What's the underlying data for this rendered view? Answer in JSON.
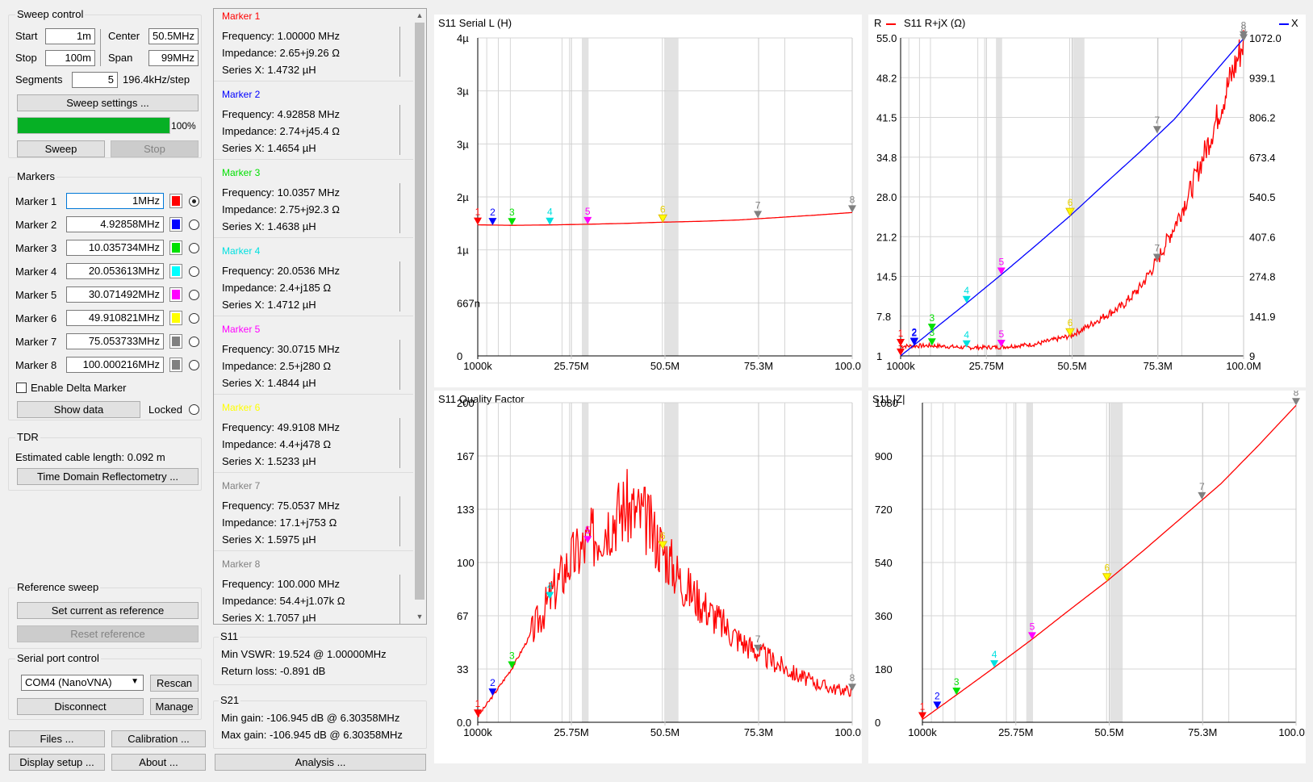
{
  "sweep": {
    "title": "Sweep control",
    "start_label": "Start",
    "start_value": "1m",
    "center_label": "Center",
    "center_value": "50.5MHz",
    "stop_label": "Stop",
    "stop_value": "100m",
    "span_label": "Span",
    "span_value": "99MHz",
    "segments_label": "Segments",
    "segments_value": "5",
    "step_text": "196.4kHz/step",
    "settings_button": "Sweep settings ...",
    "progress": 100,
    "progress_text": "100%",
    "sweep_button": "Sweep",
    "stop_button": "Stop"
  },
  "markers": {
    "title": "Markers",
    "items": [
      {
        "label": "Marker 1",
        "value": "1MHz",
        "color": "#ff0000",
        "selected": true
      },
      {
        "label": "Marker 2",
        "value": "4.92858MHz",
        "color": "#0000ff",
        "selected": false
      },
      {
        "label": "Marker 3",
        "value": "10.035734MHz",
        "color": "#00e000",
        "selected": false
      },
      {
        "label": "Marker 4",
        "value": "20.053613MHz",
        "color": "#00ffff",
        "selected": false
      },
      {
        "label": "Marker 5",
        "value": "30.071492MHz",
        "color": "#ff00ff",
        "selected": false
      },
      {
        "label": "Marker 6",
        "value": "49.910821MHz",
        "color": "#ffff00",
        "selected": false
      },
      {
        "label": "Marker 7",
        "value": "75.053733MHz",
        "color": "#808080",
        "selected": false
      },
      {
        "label": "Marker 8",
        "value": "100.000216MHz",
        "color": "#808080",
        "selected": false
      }
    ],
    "delta_label": "Enable Delta Marker",
    "show_data_button": "Show data",
    "locked_label": "Locked"
  },
  "tdr": {
    "title": "TDR",
    "cable_text": "Estimated cable length: 0.092 m",
    "button": "Time Domain Reflectometry ..."
  },
  "reference": {
    "title": "Reference sweep",
    "set_button": "Set current as reference",
    "reset_button": "Reset reference"
  },
  "serial": {
    "title": "Serial port control",
    "port_value": "COM4 (NanoVNA)",
    "rescan_button": "Rescan",
    "disconnect_button": "Disconnect",
    "manage_button": "Manage"
  },
  "bottom": {
    "files_button": "Files ...",
    "calibration_button": "Calibration ...",
    "display_button": "Display setup ...",
    "about_button": "About ...",
    "analysis_button": "Analysis ..."
  },
  "marker_details": [
    {
      "title": "Marker 1",
      "color": "#ff0000",
      "freq": "Frequency:  1.00000 MHz",
      "imp": "Impedance:  2.65+j9.26 Ω",
      "sx": "Series X:  1.4732 µH"
    },
    {
      "title": "Marker 2",
      "color": "#0000ff",
      "freq": "Frequency:  4.92858 MHz",
      "imp": "Impedance:  2.74+j45.4 Ω",
      "sx": "Series X:  1.4654 µH"
    },
    {
      "title": "Marker 3",
      "color": "#00e000",
      "freq": "Frequency:  10.0357 MHz",
      "imp": "Impedance:  2.75+j92.3 Ω",
      "sx": "Series X:  1.4638 µH"
    },
    {
      "title": "Marker 4",
      "color": "#00e0e0",
      "freq": "Frequency:  20.0536 MHz",
      "imp": "Impedance:  2.4+j185 Ω",
      "sx": "Series X:  1.4712 µH"
    },
    {
      "title": "Marker 5",
      "color": "#ff00ff",
      "freq": "Frequency:  30.0715 MHz",
      "imp": "Impedance:  2.5+j280 Ω",
      "sx": "Series X:  1.4844 µH"
    },
    {
      "title": "Marker 6",
      "color": "#ffff00",
      "freq": "Frequency:  49.9108 MHz",
      "imp": "Impedance:  4.4+j478 Ω",
      "sx": "Series X:  1.5233 µH"
    },
    {
      "title": "Marker 7",
      "color": "#808080",
      "freq": "Frequency:  75.0537 MHz",
      "imp": "Impedance:  17.1+j753 Ω",
      "sx": "Series X:  1.5975 µH"
    },
    {
      "title": "Marker 8",
      "color": "#808080",
      "freq": "Frequency:  100.000 MHz",
      "imp": "Impedance:  54.4+j1.07k Ω",
      "sx": "Series X:  1.7057 µH"
    }
  ],
  "s11_summary": {
    "title": "S11",
    "vswr": "Min VSWR:  19.524 @ 1.00000MHz",
    "return_loss": "Return loss:  -0.891 dB"
  },
  "s21_summary": {
    "title": "S21",
    "min_gain": "Min gain:  -106.945 dB @ 6.30358MHz",
    "max_gain": "Max gain:  -106.945 dB @ 6.30358MHz"
  },
  "chart_data": [
    {
      "type": "line",
      "title": "S11 Serial L (H)",
      "x_ticks": [
        "1000k",
        "25.75M",
        "50.5M",
        "75.3M",
        "100.0M"
      ],
      "y_ticks": [
        "0",
        "667n",
        "1µ",
        "2µ",
        "3µ",
        "3µ",
        "4µ"
      ],
      "series": [
        {
          "color": "#ff0000",
          "x": [
            1,
            10,
            20,
            30,
            40,
            50,
            60,
            70,
            80,
            90,
            100
          ],
          "y": [
            1.4732,
            1.4638,
            1.4712,
            1.4844,
            1.5,
            1.5233,
            1.54,
            1.565,
            1.61,
            1.655,
            1.7057
          ]
        }
      ],
      "markers": [
        {
          "label": "1",
          "x": 1,
          "y": 1.4732,
          "color": "#ff0000"
        },
        {
          "label": "2",
          "x": 4.93,
          "y": 1.4654,
          "color": "#0000ff"
        },
        {
          "label": "3",
          "x": 10.04,
          "y": 1.4638,
          "color": "#00e000"
        },
        {
          "label": "4",
          "x": 20.05,
          "y": 1.4712,
          "color": "#00e0e0"
        },
        {
          "label": "5",
          "x": 30.07,
          "y": 1.4844,
          "color": "#ff00ff"
        },
        {
          "label": "6",
          "x": 49.91,
          "y": 1.5233,
          "color": "#ffff00"
        },
        {
          "label": "7",
          "x": 75.05,
          "y": 1.5975,
          "color": "#808080"
        },
        {
          "label": "8",
          "x": 100,
          "y": 1.7057,
          "color": "#808080"
        }
      ]
    },
    {
      "type": "line",
      "title": "S11 R+jX (Ω)",
      "left_legend": "R",
      "right_legend": "X",
      "x_ticks": [
        "1000k",
        "25.75M",
        "50.5M",
        "75.3M",
        "100.0M"
      ],
      "y_left_ticks": [
        "1",
        "7.8",
        "14.5",
        "21.2",
        "28.0",
        "34.8",
        "41.5",
        "48.2",
        "55.0"
      ],
      "y_right_ticks": [
        "9",
        "141.9",
        "274.8",
        "407.6",
        "540.5",
        "673.4",
        "806.2",
        "939.1",
        "1072.0"
      ],
      "series": [
        {
          "name": "R",
          "color": "#ff0000",
          "x": [
            1,
            5,
            10,
            20,
            30,
            40,
            50,
            55,
            60,
            65,
            70,
            75,
            80,
            85,
            90,
            95,
            100
          ],
          "y": [
            2.65,
            2.7,
            2.75,
            2.4,
            2.5,
            3.0,
            4.4,
            6.0,
            7.8,
            9.5,
            12.5,
            17.1,
            23,
            29.5,
            37.5,
            46,
            54.4
          ]
        },
        {
          "name": "X",
          "color": "#0000ff",
          "x": [
            1,
            10,
            20,
            30,
            40,
            50,
            60,
            70,
            80,
            90,
            100
          ],
          "y": [
            9.26,
            92.3,
            185,
            280,
            378,
            478,
            585,
            690,
            800,
            935,
            1070
          ]
        }
      ],
      "markers_r": [
        {
          "label": "1",
          "x": 1,
          "y": 2.65,
          "color": "#ff0000"
        },
        {
          "label": "2",
          "x": 4.93,
          "y": 2.74,
          "color": "#0000ff"
        },
        {
          "label": "3",
          "x": 10.04,
          "y": 2.75,
          "color": "#00e000"
        },
        {
          "label": "4",
          "x": 20.05,
          "y": 2.4,
          "color": "#00e0e0"
        },
        {
          "label": "5",
          "x": 30.07,
          "y": 2.5,
          "color": "#ff00ff"
        },
        {
          "label": "6",
          "x": 49.91,
          "y": 4.4,
          "color": "#ffff00"
        },
        {
          "label": "7",
          "x": 75.05,
          "y": 17.1,
          "color": "#808080"
        },
        {
          "label": "8",
          "x": 100,
          "y": 54.4,
          "color": "#808080"
        }
      ],
      "markers_x": [
        {
          "label": "1",
          "x": 1,
          "y": 9.26,
          "color": "#ff0000"
        },
        {
          "label": "2",
          "x": 4.93,
          "y": 45.4,
          "color": "#0000ff"
        },
        {
          "label": "3",
          "x": 10.04,
          "y": 92.3,
          "color": "#00e000"
        },
        {
          "label": "4",
          "x": 20.05,
          "y": 185,
          "color": "#00e0e0"
        },
        {
          "label": "5",
          "x": 30.07,
          "y": 280,
          "color": "#ff00ff"
        },
        {
          "label": "6",
          "x": 49.91,
          "y": 478,
          "color": "#ffff00"
        },
        {
          "label": "7",
          "x": 75.05,
          "y": 753,
          "color": "#808080"
        },
        {
          "label": "8",
          "x": 100,
          "y": 1070,
          "color": "#808080"
        }
      ]
    },
    {
      "type": "line",
      "title": "S11 Quality Factor",
      "x_ticks": [
        "1000k",
        "25.75M",
        "50.5M",
        "75.3M",
        "100.0M"
      ],
      "y_ticks": [
        "0.0",
        "33",
        "67",
        "100",
        "133",
        "167",
        "200"
      ],
      "series": [
        {
          "color": "#ff0000",
          "x": [
            1,
            5,
            10,
            15,
            20,
            25,
            30,
            35,
            40,
            45,
            50,
            55,
            60,
            65,
            70,
            75,
            80,
            85,
            90,
            95,
            100
          ],
          "y": [
            3.5,
            16.6,
            33.6,
            55,
            77,
            100,
            112,
            125,
            135,
            128,
            108,
            88,
            75,
            63,
            52,
            44,
            37,
            30,
            25,
            21,
            19.6
          ]
        }
      ],
      "markers": [
        {
          "label": "1",
          "x": 1,
          "y": 3.5,
          "color": "#ff0000"
        },
        {
          "label": "2",
          "x": 4.93,
          "y": 16.6,
          "color": "#0000ff"
        },
        {
          "label": "3",
          "x": 10.04,
          "y": 33.6,
          "color": "#00e000"
        },
        {
          "label": "4",
          "x": 20.05,
          "y": 77,
          "color": "#00e0e0"
        },
        {
          "label": "5",
          "x": 30.07,
          "y": 112,
          "color": "#ff00ff"
        },
        {
          "label": "6",
          "x": 49.91,
          "y": 108.6,
          "color": "#ffff00"
        },
        {
          "label": "7",
          "x": 75.05,
          "y": 44,
          "color": "#808080"
        },
        {
          "label": "8",
          "x": 100,
          "y": 19.6,
          "color": "#808080"
        }
      ]
    },
    {
      "type": "line",
      "title": "S11 |Z|",
      "x_ticks": [
        "1000k",
        "25.75M",
        "50.5M",
        "75.3M",
        "100.0M"
      ],
      "y_ticks": [
        "0",
        "180",
        "360",
        "540",
        "720",
        "900",
        "1080"
      ],
      "series": [
        {
          "color": "#ff0000",
          "x": [
            1,
            10,
            20,
            30,
            40,
            50,
            60,
            70,
            80,
            90,
            100
          ],
          "y": [
            9.6,
            92.3,
            185,
            280,
            380,
            478,
            585,
            695,
            805,
            935,
            1071
          ]
        }
      ],
      "markers": [
        {
          "label": "1",
          "x": 1,
          "y": 9.6,
          "color": "#ff0000"
        },
        {
          "label": "2",
          "x": 4.93,
          "y": 45.5,
          "color": "#0000ff"
        },
        {
          "label": "3",
          "x": 10.04,
          "y": 92.3,
          "color": "#00e000"
        },
        {
          "label": "4",
          "x": 20.05,
          "y": 185,
          "color": "#00e0e0"
        },
        {
          "label": "5",
          "x": 30.07,
          "y": 280,
          "color": "#ff00ff"
        },
        {
          "label": "6",
          "x": 49.91,
          "y": 478,
          "color": "#ffff00"
        },
        {
          "label": "7",
          "x": 75.05,
          "y": 753,
          "color": "#808080"
        },
        {
          "label": "8",
          "x": 100,
          "y": 1071,
          "color": "#808080"
        }
      ]
    }
  ]
}
